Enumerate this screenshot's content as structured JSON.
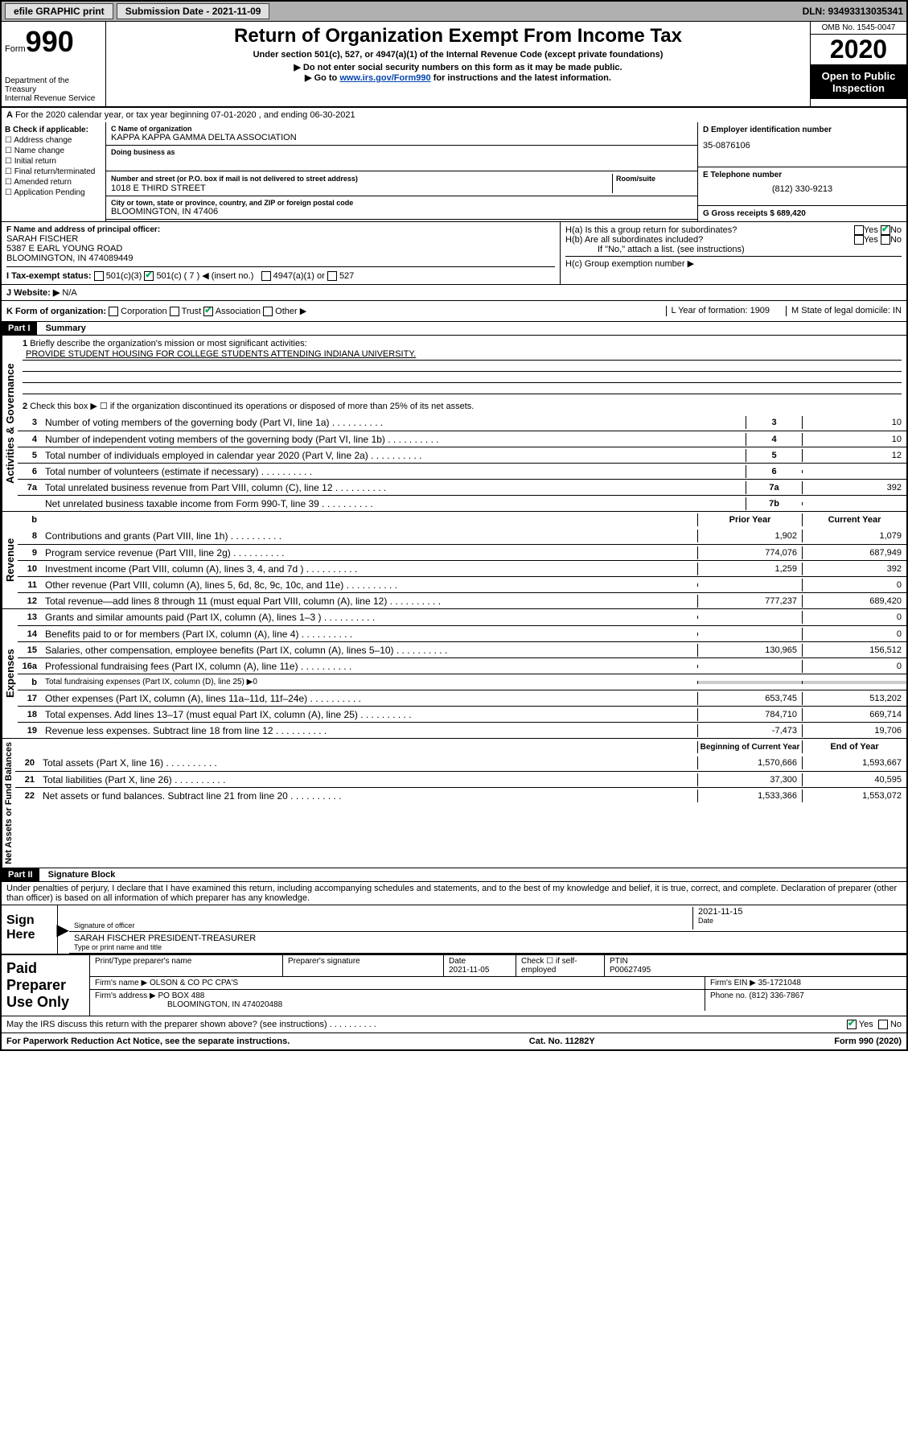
{
  "topbar": {
    "efile_label": "efile GRAPHIC print",
    "submission_label": "Submission Date - 2021-11-09",
    "dln_label": "DLN: 93493313035341"
  },
  "header": {
    "form_label": "Form",
    "form_number": "990",
    "dept": "Department of the Treasury\nInternal Revenue Service",
    "title": "Return of Organization Exempt From Income Tax",
    "subtitle": "Under section 501(c), 527, or 4947(a)(1) of the Internal Revenue Code (except private foundations)",
    "warn1": "▶ Do not enter social security numbers on this form as it may be made public.",
    "warn2_pre": "▶ Go to ",
    "warn2_link": "www.irs.gov/Form990",
    "warn2_post": " for instructions and the latest information.",
    "omb": "OMB No. 1545-0047",
    "year": "2020",
    "inspection": "Open to Public Inspection"
  },
  "line_a": "For the 2020 calendar year, or tax year beginning 07-01-2020    , and ending 06-30-2021",
  "col_b": {
    "title": "B Check if applicable:",
    "items": [
      "Address change",
      "Name change",
      "Initial return",
      "Final return/terminated",
      "Amended return",
      "Application Pending"
    ]
  },
  "col_c": {
    "name_lbl": "C Name of organization",
    "name": "KAPPA KAPPA GAMMA DELTA ASSOCIATION",
    "dba_lbl": "Doing business as",
    "dba": "",
    "street_lbl": "Number and street (or P.O. box if mail is not delivered to street address)",
    "room_lbl": "Room/suite",
    "street": "1018 E THIRD STREET",
    "city_lbl": "City or town, state or province, country, and ZIP or foreign postal code",
    "city": "BLOOMINGTON, IN  47406"
  },
  "col_d": {
    "ein_lbl": "D Employer identification number",
    "ein": "35-0876106",
    "tel_lbl": "E Telephone number",
    "tel": "(812) 330-9213",
    "gross_lbl": "G Gross receipts $ 689,420"
  },
  "section_f": {
    "lbl": "F  Name and address of principal officer:",
    "name": "SARAH FISCHER",
    "addr1": "5387 E EARL YOUNG ROAD",
    "addr2": "BLOOMINGTON, IN  474089449"
  },
  "section_h": {
    "ha": "H(a)  Is this a group return for subordinates?",
    "hb": "H(b)  Are all subordinates included?",
    "hb_note": "If \"No,\" attach a list. (see instructions)",
    "hc": "H(c)  Group exemption number ▶",
    "yes": "Yes",
    "no": "No"
  },
  "tax_exempt": {
    "lbl": "I  Tax-exempt status:",
    "c3": "501(c)(3)",
    "c": "501(c) ( 7 ) ◀ (insert no.)",
    "a1": "4947(a)(1) or",
    "s527": "527"
  },
  "line_j": {
    "lbl": "J  Website: ▶",
    "val": "N/A"
  },
  "line_k": {
    "lbl": "K Form of organization:",
    "corp": "Corporation",
    "trust": "Trust",
    "assoc": "Association",
    "other": "Other ▶",
    "year_lbl": "L Year of formation: 1909",
    "state_lbl": "M State of legal domicile: IN"
  },
  "part1": {
    "header": "Part I",
    "title": "Summary",
    "q1": "Briefly describe the organization's mission or most significant activities:",
    "mission": "PROVIDE STUDENT HOUSING FOR COLLEGE STUDENTS ATTENDING INDIANA UNIVERSITY.",
    "q2": "Check this box ▶ ☐  if the organization discontinued its operations or disposed of more than 25% of its net assets.",
    "lines": [
      {
        "n": "3",
        "d": "Number of voting members of the governing body (Part VI, line 1a)",
        "box": "3",
        "v": "10"
      },
      {
        "n": "4",
        "d": "Number of independent voting members of the governing body (Part VI, line 1b)",
        "box": "4",
        "v": "10"
      },
      {
        "n": "5",
        "d": "Total number of individuals employed in calendar year 2020 (Part V, line 2a)",
        "box": "5",
        "v": "12"
      },
      {
        "n": "6",
        "d": "Total number of volunteers (estimate if necessary)",
        "box": "6",
        "v": ""
      },
      {
        "n": "7a",
        "d": "Total unrelated business revenue from Part VIII, column (C), line 12",
        "box": "7a",
        "v": "392"
      },
      {
        "n": "",
        "d": "Net unrelated business taxable income from Form 990-T, line 39",
        "box": "7b",
        "v": ""
      }
    ],
    "prior_hdr": "Prior Year",
    "current_hdr": "Current Year",
    "rev_lines": [
      {
        "n": "8",
        "d": "Contributions and grants (Part VIII, line 1h)",
        "p": "1,902",
        "c": "1,079"
      },
      {
        "n": "9",
        "d": "Program service revenue (Part VIII, line 2g)",
        "p": "774,076",
        "c": "687,949"
      },
      {
        "n": "10",
        "d": "Investment income (Part VIII, column (A), lines 3, 4, and 7d )",
        "p": "1,259",
        "c": "392"
      },
      {
        "n": "11",
        "d": "Other revenue (Part VIII, column (A), lines 5, 6d, 8c, 9c, 10c, and 11e)",
        "p": "",
        "c": "0"
      },
      {
        "n": "12",
        "d": "Total revenue—add lines 8 through 11 (must equal Part VIII, column (A), line 12)",
        "p": "777,237",
        "c": "689,420"
      }
    ],
    "exp_lines": [
      {
        "n": "13",
        "d": "Grants and similar amounts paid (Part IX, column (A), lines 1–3 )",
        "p": "",
        "c": "0"
      },
      {
        "n": "14",
        "d": "Benefits paid to or for members (Part IX, column (A), line 4)",
        "p": "",
        "c": "0"
      },
      {
        "n": "15",
        "d": "Salaries, other compensation, employee benefits (Part IX, column (A), lines 5–10)",
        "p": "130,965",
        "c": "156,512"
      },
      {
        "n": "16a",
        "d": "Professional fundraising fees (Part IX, column (A), line 11e)",
        "p": "",
        "c": "0"
      },
      {
        "n": "b",
        "d": "Total fundraising expenses (Part IX, column (D), line 25) ▶0",
        "p": null,
        "c": null
      },
      {
        "n": "17",
        "d": "Other expenses (Part IX, column (A), lines 11a–11d, 11f–24e)",
        "p": "653,745",
        "c": "513,202"
      },
      {
        "n": "18",
        "d": "Total expenses. Add lines 13–17 (must equal Part IX, column (A), line 25)",
        "p": "784,710",
        "c": "669,714"
      },
      {
        "n": "19",
        "d": "Revenue less expenses. Subtract line 18 from line 12",
        "p": "-7,473",
        "c": "19,706"
      }
    ],
    "begin_hdr": "Beginning of Current Year",
    "end_hdr": "End of Year",
    "net_lines": [
      {
        "n": "20",
        "d": "Total assets (Part X, line 16)",
        "p": "1,570,666",
        "c": "1,593,667"
      },
      {
        "n": "21",
        "d": "Total liabilities (Part X, line 26)",
        "p": "37,300",
        "c": "40,595"
      },
      {
        "n": "22",
        "d": "Net assets or fund balances. Subtract line 21 from line 20",
        "p": "1,533,366",
        "c": "1,553,072"
      }
    ],
    "side_gov": "Activities & Governance",
    "side_rev": "Revenue",
    "side_exp": "Expenses",
    "side_net": "Net Assets or Fund Balances",
    "b_label": "b"
  },
  "part2": {
    "header": "Part II",
    "title": "Signature Block",
    "perjury": "Under penalties of perjury, I declare that I have examined this return, including accompanying schedules and statements, and to the best of my knowledge and belief, it is true, correct, and complete. Declaration of preparer (other than officer) is based on all information of which preparer has any knowledge.",
    "sign_here": "Sign Here",
    "sig_officer": "Signature of officer",
    "sig_date": "2021-11-15",
    "date_lbl": "Date",
    "officer_name": "SARAH FISCHER PRESIDENT-TREASURER",
    "type_lbl": "Type or print name and title",
    "paid_lbl": "Paid Preparer Use Only",
    "prep_name_lbl": "Print/Type preparer's name",
    "prep_sig_lbl": "Preparer's signature",
    "prep_date_lbl": "Date",
    "prep_date": "2021-11-05",
    "self_emp": "Check ☐ if self-employed",
    "ptin_lbl": "PTIN",
    "ptin": "P00627495",
    "firm_name_lbl": "Firm's name    ▶",
    "firm_name": "OLSON & CO PC CPA'S",
    "firm_ein_lbl": "Firm's EIN ▶",
    "firm_ein": "35-1721048",
    "firm_addr_lbl": "Firm's address ▶",
    "firm_addr1": "PO BOX 488",
    "firm_addr2": "BLOOMINGTON, IN  474020488",
    "phone_lbl": "Phone no.",
    "phone": "(812) 336-7867",
    "discuss": "May the IRS discuss this return with the preparer shown above? (see instructions)",
    "yes": "Yes",
    "no": "No"
  },
  "footer": {
    "left": "For Paperwork Reduction Act Notice, see the separate instructions.",
    "mid": "Cat. No. 11282Y",
    "right": "Form 990 (2020)"
  }
}
